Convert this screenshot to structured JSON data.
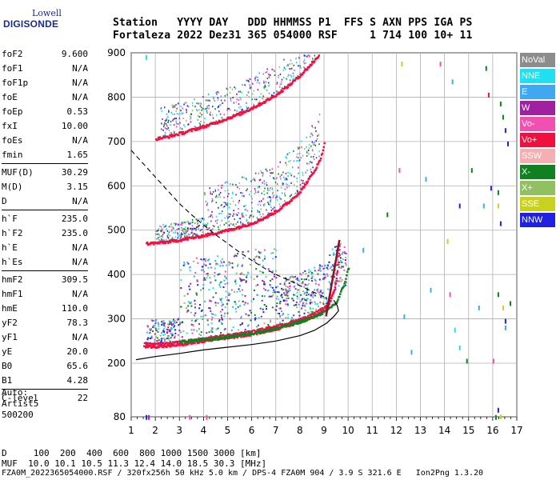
{
  "logo": {
    "line1": "Lowell",
    "line2": "DIGISONDE"
  },
  "header": {
    "top": "Station   YYYY DAY   DDD HHMMSS P1  FFS S AXN PPS IGA PS",
    "bottom": "Fortaleza 2022 Dez31 365 054000 RSF     1 714 100 10+ 11"
  },
  "params": {
    "group1": [
      {
        "k": "foF2",
        "v": "9.600"
      },
      {
        "k": "foF1",
        "v": "N/A"
      },
      {
        "k": "foF1p",
        "v": "N/A"
      },
      {
        "k": "foE",
        "v": "N/A"
      },
      {
        "k": "foEp",
        "v": "0.53"
      },
      {
        "k": "fxI",
        "v": "10.00"
      },
      {
        "k": "foEs",
        "v": "N/A"
      },
      {
        "k": "fmin",
        "v": "1.65"
      }
    ],
    "group2": [
      {
        "k": "MUF(D)",
        "v": "30.29"
      },
      {
        "k": "M(D)",
        "v": "3.15"
      },
      {
        "k": "D",
        "v": "N/A"
      }
    ],
    "group3": [
      {
        "k": "h`F",
        "v": "235.0"
      },
      {
        "k": "h`F2",
        "v": "235.0"
      },
      {
        "k": "h`E",
        "v": "N/A"
      },
      {
        "k": "h`Es",
        "v": "N/A"
      }
    ],
    "group4": [
      {
        "k": "hmF2",
        "v": "309.5"
      },
      {
        "k": "hmF1",
        "v": "N/A"
      },
      {
        "k": "hmE",
        "v": "110.0"
      },
      {
        "k": "yF2",
        "v": "78.3"
      },
      {
        "k": "yF1",
        "v": "N/A"
      },
      {
        "k": "yE",
        "v": "20.0"
      },
      {
        "k": "B0",
        "v": "65.6"
      },
      {
        "k": "B1",
        "v": "4.28"
      }
    ],
    "group5": [
      {
        "k": "C-level",
        "v": "22"
      }
    ]
  },
  "auto": [
    "Auto:",
    "Artist5",
    "500200"
  ],
  "footer": {
    "d_line": "D     100  200  400  600  800 1000 1500 3000 [km]",
    "muf_line": "MUF  10.0 10.1 10.5 11.3 12.4 14.0 18.5 30.3 [MHz]",
    "file_line": "FZA0M_2022365054000.RSF / 320fx256h 50 kHz 5.0 km / DPS-4 FZA0M 904 / 3.9 S 321.6 E   Ion2Png 1.3.20"
  },
  "legend": [
    {
      "label": "NoVal",
      "color": "#8c8c8c"
    },
    {
      "label": "NNE",
      "color": "#20e0f0"
    },
    {
      "label": "E",
      "color": "#40a8f0"
    },
    {
      "label": "W",
      "color": "#a020a0"
    },
    {
      "label": "Vo-",
      "color": "#f050b0"
    },
    {
      "label": "Vo+",
      "color": "#f01040"
    },
    {
      "label": "SSW",
      "color": "#f4b0b0"
    },
    {
      "label": "X-",
      "color": "#108020"
    },
    {
      "label": "X+",
      "color": "#90c060"
    },
    {
      "label": "SSE",
      "color": "#c8d020"
    },
    {
      "label": "NNW",
      "color": "#2020e0"
    }
  ],
  "chart_data": {
    "type": "scatter",
    "title": "",
    "xlabel": "",
    "ylabel": "",
    "xlim": [
      1,
      17
    ],
    "ylim": [
      80,
      900
    ],
    "x_ticks": [
      1,
      2,
      3,
      4,
      5,
      6,
      7,
      8,
      9,
      10,
      11,
      12,
      13,
      14,
      15,
      16,
      17
    ],
    "y_ticks": [
      80,
      200,
      300,
      400,
      500,
      600,
      700,
      800,
      900
    ],
    "traces": [
      {
        "name": "o-trace F2",
        "color": "#f01040",
        "points": [
          [
            1.5,
            240
          ],
          [
            2.0,
            240
          ],
          [
            2.5,
            241
          ],
          [
            3.0,
            244
          ],
          [
            3.5,
            248
          ],
          [
            4.0,
            252
          ],
          [
            4.5,
            256
          ],
          [
            5.0,
            260
          ],
          [
            5.5,
            264
          ],
          [
            6.0,
            268
          ],
          [
            6.5,
            274
          ],
          [
            7.0,
            280
          ],
          [
            7.5,
            287
          ],
          [
            8.0,
            296
          ],
          [
            8.5,
            307
          ],
          [
            9.0,
            322
          ],
          [
            9.2,
            338
          ],
          [
            9.4,
            365
          ],
          [
            9.5,
            400
          ],
          [
            9.6,
            460
          ]
        ]
      },
      {
        "name": "x-trace F2",
        "color": "#108020",
        "points": [
          [
            3.0,
            250
          ],
          [
            3.5,
            253
          ],
          [
            4.0,
            255
          ],
          [
            4.5,
            258
          ],
          [
            5.0,
            262
          ],
          [
            5.5,
            266
          ],
          [
            6.0,
            270
          ],
          [
            6.5,
            275
          ],
          [
            7.0,
            281
          ],
          [
            7.5,
            288
          ],
          [
            8.0,
            296
          ],
          [
            8.5,
            306
          ],
          [
            9.0,
            318
          ],
          [
            9.5,
            340
          ],
          [
            9.8,
            380
          ],
          [
            10.0,
            420
          ]
        ]
      },
      {
        "name": "2nd hop F2",
        "color": "#f01040",
        "points": [
          [
            1.6,
            472
          ],
          [
            2.0,
            473
          ],
          [
            2.5,
            476
          ],
          [
            3.0,
            480
          ],
          [
            3.5,
            485
          ],
          [
            4.0,
            490
          ],
          [
            4.5,
            496
          ],
          [
            5.0,
            502
          ],
          [
            5.5,
            510
          ],
          [
            6.0,
            518
          ],
          [
            6.5,
            530
          ],
          [
            7.0,
            545
          ],
          [
            7.5,
            565
          ],
          [
            8.0,
            590
          ],
          [
            8.5,
            630
          ],
          [
            8.8,
            660
          ],
          [
            9.0,
            700
          ]
        ]
      },
      {
        "name": "3rd hop F2",
        "color": "#f01040",
        "points": [
          [
            2.0,
            708
          ],
          [
            2.5,
            713
          ],
          [
            3.0,
            720
          ],
          [
            3.5,
            728
          ],
          [
            4.0,
            736
          ],
          [
            4.5,
            745
          ],
          [
            5.0,
            755
          ],
          [
            5.5,
            765
          ],
          [
            6.0,
            778
          ],
          [
            6.5,
            792
          ],
          [
            7.0,
            808
          ],
          [
            7.5,
            828
          ],
          [
            8.0,
            852
          ],
          [
            8.5,
            880
          ],
          [
            8.8,
            900
          ]
        ]
      }
    ],
    "profile": {
      "name": "electron density profile",
      "points": [
        [
          1.2,
          208
        ],
        [
          2.0,
          215
        ],
        [
          3.0,
          222
        ],
        [
          4.0,
          230
        ],
        [
          5.0,
          236
        ],
        [
          6.0,
          242
        ],
        [
          7.0,
          250
        ],
        [
          8.0,
          262
        ],
        [
          8.6,
          274
        ],
        [
          9.1,
          290
        ],
        [
          9.4,
          305
        ],
        [
          9.6,
          318
        ],
        [
          9.55,
          330
        ],
        [
          9.4,
          342
        ]
      ]
    },
    "muf_curve": {
      "name": "MUF curve",
      "points": [
        [
          1.0,
          680
        ],
        [
          1.5,
          650
        ],
        [
          2.0,
          620
        ],
        [
          2.5,
          590
        ],
        [
          3.0,
          560
        ],
        [
          3.5,
          535
        ],
        [
          4.0,
          512
        ],
        [
          4.5,
          490
        ],
        [
          5.0,
          470
        ],
        [
          5.5,
          450
        ],
        [
          6.0,
          432
        ],
        [
          6.5,
          415
        ],
        [
          7.0,
          400
        ],
        [
          7.5,
          388
        ],
        [
          8.0,
          375
        ],
        [
          8.5,
          362
        ],
        [
          9.0,
          350
        ]
      ]
    }
  }
}
